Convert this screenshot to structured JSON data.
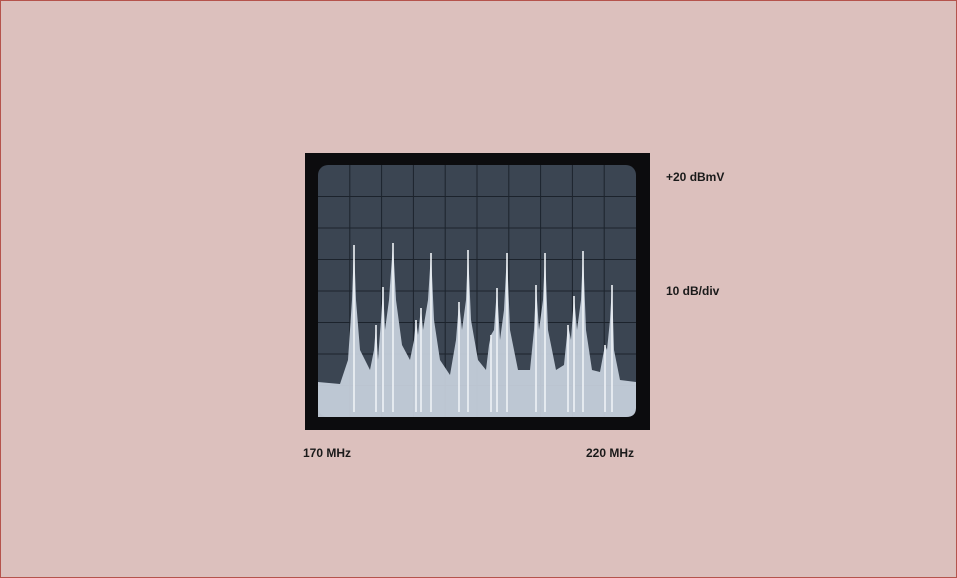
{
  "labels": {
    "reference_level": "+20 dBmV",
    "scale": "10 dB/div",
    "start_frequency": "170 MHz",
    "stop_frequency": "220 MHz"
  }
}
